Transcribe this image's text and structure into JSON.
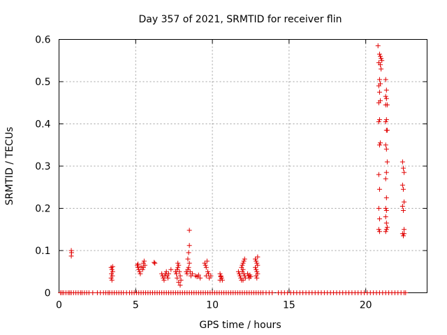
{
  "chart_data": {
    "type": "scatter",
    "title": "Day 357 of 2021, SRMTID for receiver flin",
    "xlabel": "GPS time / hours",
    "ylabel": "SRMTID / TECUs",
    "xlim": [
      0,
      24
    ],
    "ylim": [
      0,
      0.6
    ],
    "xticks": [
      0,
      5,
      10,
      15,
      20
    ],
    "yticks": [
      0,
      0.1,
      0.2,
      0.3,
      0.4,
      0.5,
      0.6
    ],
    "xtick_labels": [
      "0",
      "5",
      "10",
      "15",
      "20"
    ],
    "ytick_labels": [
      "0",
      "0.1",
      "0.2",
      "0.3",
      "0.4",
      "0.5",
      "0.6"
    ],
    "grid": true,
    "marker": "+",
    "color": "#e00000",
    "series": [
      {
        "name": "SRMTID",
        "points": [
          [
            0.1,
            0
          ],
          [
            0.2,
            0
          ],
          [
            0.3,
            0
          ],
          [
            0.45,
            0
          ],
          [
            0.6,
            0
          ],
          [
            0.7,
            0
          ],
          [
            0.8,
            0
          ],
          [
            0.95,
            0
          ],
          [
            1.1,
            0
          ],
          [
            1.25,
            0
          ],
          [
            1.4,
            0
          ],
          [
            1.5,
            0
          ],
          [
            1.65,
            0
          ],
          [
            1.8,
            0
          ],
          [
            1.95,
            0
          ],
          [
            2.2,
            0
          ],
          [
            2.5,
            0
          ],
          [
            2.7,
            0
          ],
          [
            2.9,
            0
          ],
          [
            3.05,
            0
          ],
          [
            3.2,
            0
          ],
          [
            3.3,
            0
          ],
          [
            3.45,
            0
          ],
          [
            3.6,
            0
          ],
          [
            3.75,
            0
          ],
          [
            3.9,
            0
          ],
          [
            4.05,
            0
          ],
          [
            4.2,
            0
          ],
          [
            4.4,
            0
          ],
          [
            4.6,
            0
          ],
          [
            4.75,
            0
          ],
          [
            4.9,
            0
          ],
          [
            5.05,
            0
          ],
          [
            5.2,
            0
          ],
          [
            5.35,
            0
          ],
          [
            5.5,
            0
          ],
          [
            5.65,
            0
          ],
          [
            5.8,
            0
          ],
          [
            5.95,
            0
          ],
          [
            6.1,
            0
          ],
          [
            6.25,
            0
          ],
          [
            6.4,
            0
          ],
          [
            6.55,
            0
          ],
          [
            6.7,
            0
          ],
          [
            6.85,
            0
          ],
          [
            7.0,
            0
          ],
          [
            7.15,
            0
          ],
          [
            7.3,
            0
          ],
          [
            7.45,
            0
          ],
          [
            7.6,
            0
          ],
          [
            7.75,
            0
          ],
          [
            7.9,
            0
          ],
          [
            8.05,
            0
          ],
          [
            8.2,
            0
          ],
          [
            8.35,
            0
          ],
          [
            8.5,
            0
          ],
          [
            8.65,
            0
          ],
          [
            8.8,
            0
          ],
          [
            8.95,
            0
          ],
          [
            9.1,
            0
          ],
          [
            9.25,
            0
          ],
          [
            9.4,
            0
          ],
          [
            9.55,
            0
          ],
          [
            9.7,
            0
          ],
          [
            9.85,
            0
          ],
          [
            10.0,
            0
          ],
          [
            10.15,
            0
          ],
          [
            10.3,
            0
          ],
          [
            10.45,
            0
          ],
          [
            10.6,
            0
          ],
          [
            10.75,
            0
          ],
          [
            10.9,
            0
          ],
          [
            11.05,
            0
          ],
          [
            11.2,
            0
          ],
          [
            11.35,
            0
          ],
          [
            11.5,
            0
          ],
          [
            11.65,
            0
          ],
          [
            11.8,
            0
          ],
          [
            11.95,
            0
          ],
          [
            12.1,
            0
          ],
          [
            12.25,
            0
          ],
          [
            12.4,
            0
          ],
          [
            12.55,
            0
          ],
          [
            12.7,
            0
          ],
          [
            12.85,
            0
          ],
          [
            13.0,
            0
          ],
          [
            13.15,
            0
          ],
          [
            13.3,
            0
          ],
          [
            13.5,
            0
          ],
          [
            13.7,
            0
          ],
          [
            13.9,
            0
          ],
          [
            14.3,
            0
          ],
          [
            14.5,
            0
          ],
          [
            14.7,
            0
          ],
          [
            14.9,
            0
          ],
          [
            15.1,
            0
          ],
          [
            15.3,
            0
          ],
          [
            15.5,
            0
          ],
          [
            15.7,
            0
          ],
          [
            15.9,
            0
          ],
          [
            16.1,
            0
          ],
          [
            16.3,
            0
          ],
          [
            16.5,
            0
          ],
          [
            16.7,
            0
          ],
          [
            16.9,
            0
          ],
          [
            17.1,
            0
          ],
          [
            17.3,
            0
          ],
          [
            17.5,
            0
          ],
          [
            17.7,
            0
          ],
          [
            17.9,
            0
          ],
          [
            18.1,
            0
          ],
          [
            18.3,
            0
          ],
          [
            18.5,
            0
          ],
          [
            18.7,
            0
          ],
          [
            18.9,
            0
          ],
          [
            19.1,
            0
          ],
          [
            19.3,
            0
          ],
          [
            19.5,
            0
          ],
          [
            19.7,
            0
          ],
          [
            19.9,
            0
          ],
          [
            20.1,
            0
          ],
          [
            20.3,
            0
          ],
          [
            20.5,
            0
          ],
          [
            20.7,
            0
          ],
          [
            20.9,
            0
          ],
          [
            21.1,
            0
          ],
          [
            21.3,
            0
          ],
          [
            21.5,
            0
          ],
          [
            21.7,
            0
          ],
          [
            21.9,
            0
          ],
          [
            22.1,
            0
          ],
          [
            22.3,
            0
          ],
          [
            22.5,
            0
          ],
          [
            22.6,
            0
          ],
          [
            0.8,
            0.1
          ],
          [
            0.82,
            0.095
          ],
          [
            0.8,
            0.087
          ],
          [
            3.4,
            0.06
          ],
          [
            3.45,
            0.055
          ],
          [
            3.5,
            0.05
          ],
          [
            3.42,
            0.045
          ],
          [
            3.48,
            0.04
          ],
          [
            3.4,
            0.035
          ],
          [
            3.45,
            0.03
          ],
          [
            3.5,
            0.062
          ],
          [
            5.1,
            0.065
          ],
          [
            5.15,
            0.06
          ],
          [
            5.2,
            0.055
          ],
          [
            5.25,
            0.05
          ],
          [
            5.3,
            0.045
          ],
          [
            5.15,
            0.068
          ],
          [
            5.35,
            0.062
          ],
          [
            5.5,
            0.07
          ],
          [
            5.55,
            0.075
          ],
          [
            5.6,
            0.065
          ],
          [
            5.5,
            0.06
          ],
          [
            5.45,
            0.055
          ],
          [
            6.2,
            0.072
          ],
          [
            6.25,
            0.07
          ],
          [
            6.7,
            0.045
          ],
          [
            6.75,
            0.04
          ],
          [
            6.8,
            0.035
          ],
          [
            6.85,
            0.03
          ],
          [
            6.9,
            0.04
          ],
          [
            6.95,
            0.045
          ],
          [
            7.0,
            0.05
          ],
          [
            7.05,
            0.04
          ],
          [
            7.1,
            0.035
          ],
          [
            7.15,
            0.045
          ],
          [
            7.3,
            0.055
          ],
          [
            7.6,
            0.05
          ],
          [
            7.65,
            0.045
          ],
          [
            7.7,
            0.055
          ],
          [
            7.75,
            0.06
          ],
          [
            7.8,
            0.065
          ],
          [
            7.85,
            0.05
          ],
          [
            7.9,
            0.04
          ],
          [
            7.95,
            0.03
          ],
          [
            7.8,
            0.025
          ],
          [
            7.9,
            0.018
          ],
          [
            7.7,
            0.035
          ],
          [
            7.75,
            0.07
          ],
          [
            8.3,
            0.05
          ],
          [
            8.35,
            0.045
          ],
          [
            8.4,
            0.055
          ],
          [
            8.45,
            0.06
          ],
          [
            8.5,
            0.148
          ],
          [
            8.5,
            0.112
          ],
          [
            8.45,
            0.095
          ],
          [
            8.4,
            0.08
          ],
          [
            8.5,
            0.07
          ],
          [
            8.55,
            0.05
          ],
          [
            8.6,
            0.04
          ],
          [
            8.7,
            0.045
          ],
          [
            8.9,
            0.04
          ],
          [
            9.0,
            0.038
          ],
          [
            9.1,
            0.042
          ],
          [
            9.2,
            0.035
          ],
          [
            9.5,
            0.07
          ],
          [
            9.55,
            0.065
          ],
          [
            9.6,
            0.06
          ],
          [
            9.65,
            0.075
          ],
          [
            9.7,
            0.05
          ],
          [
            9.75,
            0.045
          ],
          [
            9.6,
            0.04
          ],
          [
            9.8,
            0.035
          ],
          [
            9.9,
            0.04
          ],
          [
            10.5,
            0.045
          ],
          [
            10.55,
            0.04
          ],
          [
            10.6,
            0.035
          ],
          [
            10.65,
            0.03
          ],
          [
            10.5,
            0.03
          ],
          [
            10.55,
            0.038
          ],
          [
            11.7,
            0.05
          ],
          [
            11.75,
            0.045
          ],
          [
            11.8,
            0.04
          ],
          [
            11.85,
            0.035
          ],
          [
            11.9,
            0.06
          ],
          [
            11.95,
            0.065
          ],
          [
            12.0,
            0.07
          ],
          [
            12.05,
            0.075
          ],
          [
            12.1,
            0.08
          ],
          [
            12.0,
            0.055
          ],
          [
            11.95,
            0.05
          ],
          [
            12.05,
            0.045
          ],
          [
            12.1,
            0.04
          ],
          [
            12.15,
            0.035
          ],
          [
            11.9,
            0.03
          ],
          [
            12.0,
            0.03
          ],
          [
            12.3,
            0.045
          ],
          [
            12.35,
            0.04
          ],
          [
            12.4,
            0.035
          ],
          [
            12.45,
            0.042
          ],
          [
            12.5,
            0.038
          ],
          [
            12.8,
            0.08
          ],
          [
            12.85,
            0.075
          ],
          [
            12.9,
            0.07
          ],
          [
            12.95,
            0.065
          ],
          [
            12.8,
            0.06
          ],
          [
            12.85,
            0.055
          ],
          [
            12.9,
            0.05
          ],
          [
            12.95,
            0.045
          ],
          [
            12.85,
            0.04
          ],
          [
            12.9,
            0.035
          ],
          [
            12.95,
            0.085
          ],
          [
            20.8,
            0.585
          ],
          [
            20.9,
            0.565
          ],
          [
            20.95,
            0.56
          ],
          [
            21.0,
            0.555
          ],
          [
            21.05,
            0.55
          ],
          [
            20.85,
            0.545
          ],
          [
            20.95,
            0.54
          ],
          [
            21.0,
            0.53
          ],
          [
            20.9,
            0.505
          ],
          [
            20.95,
            0.495
          ],
          [
            20.85,
            0.49
          ],
          [
            20.9,
            0.475
          ],
          [
            20.95,
            0.455
          ],
          [
            20.85,
            0.45
          ],
          [
            20.9,
            0.41
          ],
          [
            20.85,
            0.405
          ],
          [
            20.95,
            0.355
          ],
          [
            20.9,
            0.35
          ],
          [
            20.85,
            0.28
          ],
          [
            20.9,
            0.245
          ],
          [
            20.85,
            0.2
          ],
          [
            20.9,
            0.175
          ],
          [
            20.85,
            0.15
          ],
          [
            20.9,
            0.145
          ],
          [
            21.3,
            0.505
          ],
          [
            21.35,
            0.48
          ],
          [
            21.3,
            0.465
          ],
          [
            21.35,
            0.46
          ],
          [
            21.3,
            0.445
          ],
          [
            21.4,
            0.445
          ],
          [
            21.35,
            0.41
          ],
          [
            21.3,
            0.405
          ],
          [
            21.35,
            0.385
          ],
          [
            21.4,
            0.385
          ],
          [
            21.3,
            0.35
          ],
          [
            21.35,
            0.34
          ],
          [
            21.4,
            0.31
          ],
          [
            21.35,
            0.285
          ],
          [
            21.3,
            0.27
          ],
          [
            21.35,
            0.225
          ],
          [
            21.3,
            0.2
          ],
          [
            21.35,
            0.195
          ],
          [
            21.3,
            0.18
          ],
          [
            21.35,
            0.165
          ],
          [
            21.4,
            0.155
          ],
          [
            21.3,
            0.145
          ],
          [
            21.35,
            0.15
          ],
          [
            22.4,
            0.31
          ],
          [
            22.45,
            0.295
          ],
          [
            22.5,
            0.285
          ],
          [
            22.4,
            0.255
          ],
          [
            22.45,
            0.245
          ],
          [
            22.5,
            0.215
          ],
          [
            22.4,
            0.205
          ],
          [
            22.45,
            0.195
          ],
          [
            22.5,
            0.15
          ],
          [
            22.4,
            0.14
          ],
          [
            22.45,
            0.135
          ],
          [
            22.5,
            0.14
          ]
        ]
      }
    ]
  }
}
